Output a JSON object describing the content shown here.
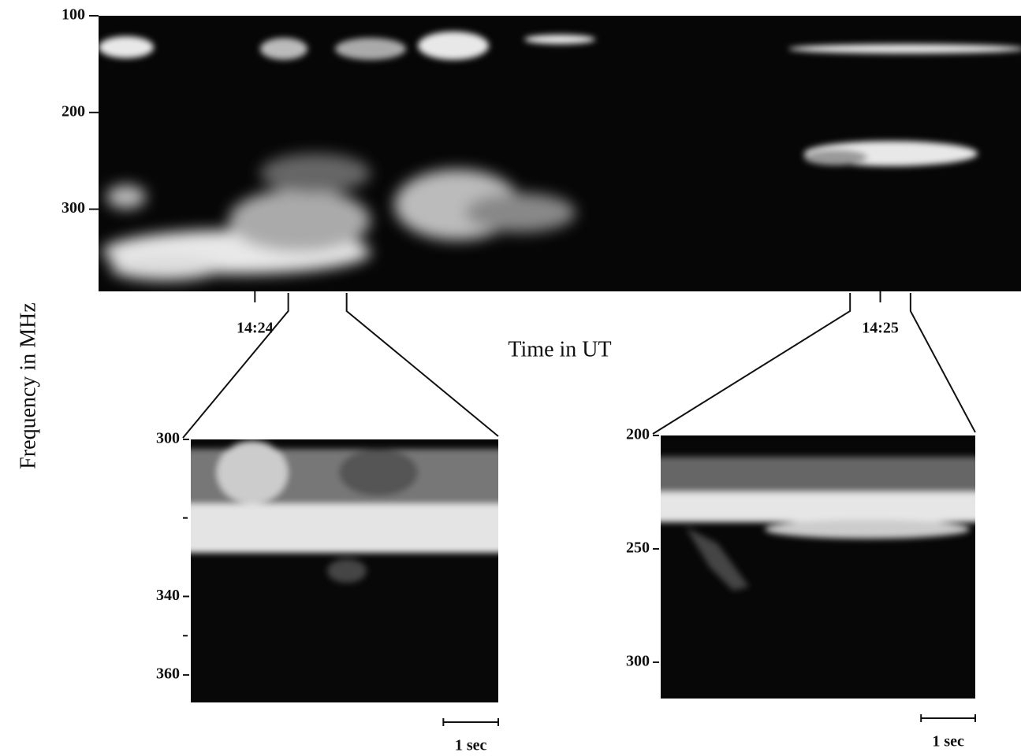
{
  "chart_data": {
    "type": "spectrogram",
    "y_label": "Frequency in MHz",
    "x_label": "Time in UT",
    "xlim": [
      51825,
      51913.5
    ],
    "xticks": [
      {
        "value": 51840,
        "label": "14:24"
      },
      {
        "value": 51900,
        "label": "14:25"
      }
    ],
    "ylim": [
      100,
      385
    ],
    "yticks": [
      100,
      200,
      300
    ],
    "zooms": [
      {
        "xlim": [
          51843.2,
          51848.8
        ],
        "ylim": [
          300,
          367
        ],
        "yticks": [
          300,
          340,
          360
        ],
        "minor_yticks": [
          320,
          350
        ],
        "scale_bar": {
          "value": 1,
          "label": "1 sec"
        }
      },
      {
        "xlim": [
          51897.1,
          51902.9
        ],
        "ylim": [
          200,
          316
        ],
        "yticks": [
          200,
          250,
          300
        ],
        "minor_yticks": [],
        "scale_bar": {
          "value": 1,
          "label": "1 sec"
        }
      }
    ]
  }
}
